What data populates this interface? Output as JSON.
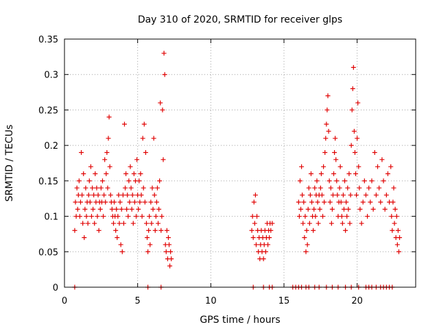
{
  "chart_data": {
    "type": "scatter",
    "title": "Day 310 of 2020, SRMTID for receiver glps",
    "xlabel": "GPS time / hours",
    "ylabel": "SRMTID / TECUs",
    "xlim": [
      0,
      24
    ],
    "ylim": [
      0,
      0.35
    ],
    "xticks": [
      0,
      5,
      10,
      15,
      20
    ],
    "xtick_labels": [
      "0",
      "5",
      "10",
      "15",
      "20"
    ],
    "yticks": [
      0,
      0.05,
      0.1,
      0.15,
      0.2,
      0.25,
      0.3,
      0.35
    ],
    "ytick_labels": [
      "0",
      "0.05",
      "0.1",
      "0.15",
      "0.2",
      "0.25",
      "0.3",
      "0.35"
    ],
    "grid": true,
    "marker": "+",
    "color": "#e00000",
    "series": [
      {
        "name": "SRMTID",
        "points": [
          [
            0.7,
            0.08
          ],
          [
            0.75,
            0.12
          ],
          [
            0.8,
            0.1
          ],
          [
            0.85,
            0.14
          ],
          [
            0.9,
            0.11
          ],
          [
            0.95,
            0.13
          ],
          [
            1.0,
            0.15
          ],
          [
            1.05,
            0.1
          ],
          [
            1.1,
            0.12
          ],
          [
            1.15,
            0.19
          ],
          [
            1.2,
            0.13
          ],
          [
            1.25,
            0.09
          ],
          [
            1.3,
            0.16
          ],
          [
            1.35,
            0.07
          ],
          [
            1.4,
            0.11
          ],
          [
            1.45,
            0.14
          ],
          [
            1.5,
            0.1
          ],
          [
            1.55,
            0.12
          ],
          [
            1.6,
            0.09
          ],
          [
            1.65,
            0.13
          ],
          [
            1.7,
            0.15
          ],
          [
            1.75,
            0.12
          ],
          [
            1.8,
            0.17
          ],
          [
            1.85,
            0.1
          ],
          [
            1.9,
            0.14
          ],
          [
            1.95,
            0.11
          ],
          [
            2.0,
            0.13
          ],
          [
            2.05,
            0.09
          ],
          [
            2.1,
            0.16
          ],
          [
            2.15,
            0.12
          ],
          [
            2.2,
            0.14
          ],
          [
            2.25,
            0.1
          ],
          [
            2.3,
            0.13
          ],
          [
            2.35,
            0.08
          ],
          [
            2.4,
            0.12
          ],
          [
            2.45,
            0.11
          ],
          [
            2.5,
            0.14
          ],
          [
            2.55,
            0.12
          ],
          [
            2.6,
            0.15
          ],
          [
            2.65,
            0.1
          ],
          [
            2.7,
            0.13
          ],
          [
            2.75,
            0.18
          ],
          [
            2.8,
            0.12
          ],
          [
            2.85,
            0.16
          ],
          [
            2.9,
            0.19
          ],
          [
            2.95,
            0.14
          ],
          [
            3.0,
            0.21
          ],
          [
            3.05,
            0.24
          ],
          [
            3.1,
            0.17
          ],
          [
            3.15,
            0.13
          ],
          [
            3.2,
            0.12
          ],
          [
            3.25,
            0.11
          ],
          [
            3.3,
            0.1
          ],
          [
            3.35,
            0.09
          ],
          [
            3.4,
            0.12
          ],
          [
            3.45,
            0.1
          ],
          [
            3.5,
            0.08
          ],
          [
            3.55,
            0.11
          ],
          [
            3.6,
            0.07
          ],
          [
            3.65,
            0.1
          ],
          [
            3.7,
            0.13
          ],
          [
            3.75,
            0.09
          ],
          [
            3.8,
            0.12
          ],
          [
            3.85,
            0.06
          ],
          [
            3.9,
            0.11
          ],
          [
            3.95,
            0.05
          ],
          [
            4.0,
            0.13
          ],
          [
            4.05,
            0.09
          ],
          [
            4.1,
            0.23
          ],
          [
            4.15,
            0.14
          ],
          [
            4.2,
            0.16
          ],
          [
            4.25,
            0.11
          ],
          [
            4.3,
            0.13
          ],
          [
            4.35,
            0.1
          ],
          [
            4.4,
            0.15
          ],
          [
            4.45,
            0.12
          ],
          [
            4.5,
            0.17
          ],
          [
            4.55,
            0.14
          ],
          [
            4.6,
            0.11
          ],
          [
            4.65,
            0.13
          ],
          [
            4.7,
            0.09
          ],
          [
            4.75,
            0.16
          ],
          [
            4.8,
            0.12
          ],
          [
            4.85,
            0.15
          ],
          [
            4.9,
            0.1
          ],
          [
            4.95,
            0.18
          ],
          [
            5.0,
            0.13
          ],
          [
            5.05,
            0.11
          ],
          [
            5.1,
            0.15
          ],
          [
            5.15,
            0.12
          ],
          [
            5.2,
            0.16
          ],
          [
            5.25,
            0.13
          ],
          [
            5.3,
            0.1
          ],
          [
            5.35,
            0.21
          ],
          [
            5.4,
            0.14
          ],
          [
            5.45,
            0.23
          ],
          [
            5.5,
            0.12
          ],
          [
            5.55,
            0.19
          ],
          [
            5.6,
            0.09
          ],
          [
            5.65,
            0.07
          ],
          [
            5.7,
            0.05
          ],
          [
            5.75,
            0.08
          ],
          [
            5.8,
            0.1
          ],
          [
            5.85,
            0.06
          ],
          [
            5.9,
            0.12
          ],
          [
            5.95,
            0.09
          ],
          [
            6.0,
            0.14
          ],
          [
            6.05,
            0.11
          ],
          [
            6.1,
            0.21
          ],
          [
            6.15,
            0.13
          ],
          [
            6.2,
            0.08
          ],
          [
            6.25,
            0.1
          ],
          [
            6.3,
            0.12
          ],
          [
            6.35,
            0.14
          ],
          [
            6.4,
            0.09
          ],
          [
            6.45,
            0.11
          ],
          [
            6.5,
            0.15
          ],
          [
            6.55,
            0.26
          ],
          [
            6.6,
            0.08
          ],
          [
            6.65,
            0.1
          ],
          [
            6.7,
            0.25
          ],
          [
            6.75,
            0.18
          ],
          [
            6.8,
            0.33
          ],
          [
            6.85,
            0.3
          ],
          [
            6.9,
            0.06
          ],
          [
            6.95,
            0.05
          ],
          [
            7.0,
            0.08
          ],
          [
            7.05,
            0.04
          ],
          [
            7.1,
            0.07
          ],
          [
            7.15,
            0.06
          ],
          [
            7.2,
            0.03
          ],
          [
            7.25,
            0.05
          ],
          [
            7.3,
            0.04
          ],
          [
            12.8,
            0.08
          ],
          [
            12.85,
            0.1
          ],
          [
            12.9,
            0.07
          ],
          [
            12.95,
            0.12
          ],
          [
            13.0,
            0.09
          ],
          [
            13.05,
            0.13
          ],
          [
            13.1,
            0.06
          ],
          [
            13.15,
            0.1
          ],
          [
            13.2,
            0.08
          ],
          [
            13.25,
            0.05
          ],
          [
            13.3,
            0.07
          ],
          [
            13.35,
            0.04
          ],
          [
            13.4,
            0.06
          ],
          [
            13.45,
            0.08
          ],
          [
            13.5,
            0.05
          ],
          [
            13.55,
            0.07
          ],
          [
            13.6,
            0.04
          ],
          [
            13.65,
            0.06
          ],
          [
            13.7,
            0.08
          ],
          [
            13.75,
            0.05
          ],
          [
            13.8,
            0.07
          ],
          [
            13.85,
            0.09
          ],
          [
            13.9,
            0.06
          ],
          [
            13.95,
            0.08
          ],
          [
            14.0,
            0.07
          ],
          [
            14.05,
            0.09
          ],
          [
            14.1,
            0.08
          ],
          [
            14.2,
            0.09
          ],
          [
            16.0,
            0.12
          ],
          [
            16.05,
            0.1
          ],
          [
            16.1,
            0.15
          ],
          [
            16.15,
            0.11
          ],
          [
            16.2,
            0.17
          ],
          [
            16.25,
            0.13
          ],
          [
            16.3,
            0.09
          ],
          [
            16.35,
            0.12
          ],
          [
            16.4,
            0.07
          ],
          [
            16.45,
            0.1
          ],
          [
            16.5,
            0.05
          ],
          [
            16.55,
            0.08
          ],
          [
            16.6,
            0.06
          ],
          [
            16.65,
            0.11
          ],
          [
            16.7,
            0.14
          ],
          [
            16.75,
            0.09
          ],
          [
            16.8,
            0.13
          ],
          [
            16.85,
            0.16
          ],
          [
            16.9,
            0.12
          ],
          [
            16.95,
            0.1
          ],
          [
            17.0,
            0.08
          ],
          [
            17.05,
            0.11
          ],
          [
            17.1,
            0.14
          ],
          [
            17.15,
            0.1
          ],
          [
            17.2,
            0.13
          ],
          [
            17.25,
            0.15
          ],
          [
            17.3,
            0.12
          ],
          [
            17.35,
            0.09
          ],
          [
            17.4,
            0.13
          ],
          [
            17.45,
            0.11
          ],
          [
            17.5,
            0.14
          ],
          [
            17.55,
            0.16
          ],
          [
            17.6,
            0.13
          ],
          [
            17.65,
            0.1
          ],
          [
            17.7,
            0.17
          ],
          [
            17.75,
            0.12
          ],
          [
            17.8,
            0.19
          ],
          [
            17.85,
            0.21
          ],
          [
            17.9,
            0.23
          ],
          [
            17.95,
            0.25
          ],
          [
            18.0,
            0.27
          ],
          [
            18.05,
            0.22
          ],
          [
            18.1,
            0.15
          ],
          [
            18.15,
            0.12
          ],
          [
            18.2,
            0.14
          ],
          [
            18.25,
            0.09
          ],
          [
            18.3,
            0.11
          ],
          [
            18.35,
            0.13
          ],
          [
            18.4,
            0.16
          ],
          [
            18.45,
            0.19
          ],
          [
            18.5,
            0.21
          ],
          [
            18.55,
            0.18
          ],
          [
            18.6,
            0.15
          ],
          [
            18.65,
            0.13
          ],
          [
            18.7,
            0.1
          ],
          [
            18.75,
            0.12
          ],
          [
            18.8,
            0.14
          ],
          [
            18.85,
            0.17
          ],
          [
            18.9,
            0.12
          ],
          [
            18.95,
            0.1
          ],
          [
            19.0,
            0.09
          ],
          [
            19.05,
            0.13
          ],
          [
            19.1,
            0.11
          ],
          [
            19.15,
            0.15
          ],
          [
            19.2,
            0.08
          ],
          [
            19.25,
            0.12
          ],
          [
            19.3,
            0.1
          ],
          [
            19.35,
            0.14
          ],
          [
            19.4,
            0.11
          ],
          [
            19.45,
            0.16
          ],
          [
            19.5,
            0.09
          ],
          [
            19.55,
            0.13
          ],
          [
            19.6,
            0.2
          ],
          [
            19.65,
            0.25
          ],
          [
            19.7,
            0.28
          ],
          [
            19.75,
            0.31
          ],
          [
            19.8,
            0.22
          ],
          [
            19.85,
            0.19
          ],
          [
            19.9,
            0.16
          ],
          [
            19.95,
            0.13
          ],
          [
            20.0,
            0.21
          ],
          [
            20.05,
            0.26
          ],
          [
            20.1,
            0.17
          ],
          [
            20.15,
            0.14
          ],
          [
            20.2,
            0.11
          ],
          [
            20.3,
            0.09
          ],
          [
            20.4,
            0.12
          ],
          [
            20.5,
            0.15
          ],
          [
            20.6,
            0.13
          ],
          [
            20.7,
            0.1
          ],
          [
            20.8,
            0.14
          ],
          [
            20.9,
            0.12
          ],
          [
            21.0,
            0.15
          ],
          [
            21.1,
            0.11
          ],
          [
            21.2,
            0.19
          ],
          [
            21.3,
            0.13
          ],
          [
            21.4,
            0.17
          ],
          [
            21.5,
            0.14
          ],
          [
            21.6,
            0.12
          ],
          [
            21.7,
            0.18
          ],
          [
            21.8,
            0.15
          ],
          [
            21.9,
            0.11
          ],
          [
            22.0,
            0.13
          ],
          [
            22.1,
            0.16
          ],
          [
            22.2,
            0.12
          ],
          [
            22.3,
            0.17
          ],
          [
            22.35,
            0.1
          ],
          [
            22.4,
            0.08
          ],
          [
            22.45,
            0.12
          ],
          [
            22.5,
            0.14
          ],
          [
            22.55,
            0.09
          ],
          [
            22.6,
            0.11
          ],
          [
            22.65,
            0.07
          ],
          [
            22.7,
            0.1
          ],
          [
            22.75,
            0.06
          ],
          [
            22.8,
            0.08
          ],
          [
            22.85,
            0.05
          ],
          [
            22.9,
            0.07
          ],
          [
            0.7,
            0.0
          ],
          [
            5.7,
            0.0
          ],
          [
            6.6,
            0.0
          ],
          [
            12.9,
            0.0
          ],
          [
            13.6,
            0.0
          ],
          [
            14.0,
            0.0
          ],
          [
            14.2,
            0.0
          ],
          [
            15.6,
            0.0
          ],
          [
            15.8,
            0.0
          ],
          [
            16.0,
            0.0
          ],
          [
            16.2,
            0.0
          ],
          [
            16.5,
            0.0
          ],
          [
            16.7,
            0.0
          ],
          [
            17.1,
            0.0
          ],
          [
            17.4,
            0.0
          ],
          [
            17.9,
            0.0
          ],
          [
            18.3,
            0.0
          ],
          [
            18.7,
            0.0
          ],
          [
            19.2,
            0.0
          ],
          [
            19.6,
            0.0
          ],
          [
            20.1,
            0.0
          ],
          [
            20.6,
            0.0
          ],
          [
            20.8,
            0.0
          ],
          [
            21.0,
            0.0
          ],
          [
            21.3,
            0.0
          ],
          [
            21.6,
            0.0
          ],
          [
            21.8,
            0.0
          ],
          [
            22.0,
            0.0
          ],
          [
            22.2,
            0.0
          ],
          [
            22.4,
            0.0
          ]
        ]
      }
    ]
  }
}
